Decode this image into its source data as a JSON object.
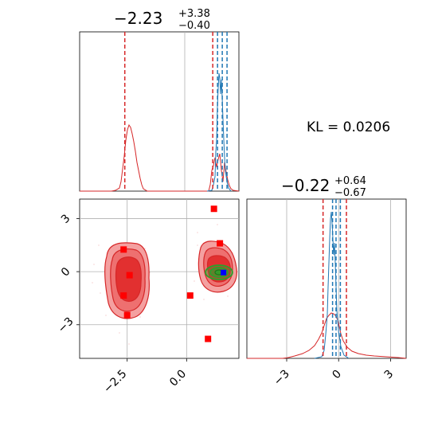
{
  "chart_data": {
    "type": "corner",
    "annotation": {
      "text": "KL = 0.0206"
    },
    "colors": {
      "red": "#d62728",
      "blue": "#1f77b4",
      "green": "#2ca02c",
      "marker_red": "#ff0000",
      "marker_blue": "#0000ff",
      "grid": "#b0b0b0"
    },
    "param1": {
      "title_main": "−2.23",
      "title_plus": "+3.38",
      "title_minus": "−0.40",
      "xlim": [
        -4.5,
        2.2
      ],
      "ticks": [
        -2.5,
        0.0
      ],
      "tick_labels": [
        "−2.5",
        "0.0"
      ],
      "hist_red_lines": [
        -2.6,
        1.1
      ],
      "hist_blue_lines": [
        1.3,
        1.5,
        1.7
      ]
    },
    "param2": {
      "title_main": "−0.22",
      "title_plus": "+0.64",
      "title_minus": "−0.67",
      "xlim": [
        -5.3,
        3.9
      ],
      "ticks": [
        -3,
        0,
        3
      ],
      "tick_labels": [
        "−3",
        "0",
        "3"
      ],
      "hist_red_lines": [
        -0.9,
        0.45
      ],
      "hist_blue_lines": [
        -0.35,
        -0.15,
        0.1
      ]
    },
    "scatter2d": {
      "xlim": [
        -4.5,
        2.2
      ],
      "ylim": [
        -4.9,
        4.1
      ],
      "yticks": [
        3,
        0,
        -3
      ],
      "ytick_labels": [
        "3",
        "0",
        "−3"
      ],
      "red_squares": [
        {
          "x": 1.15,
          "y": 3.55
        },
        {
          "x": 1.4,
          "y": 1.6
        },
        {
          "x": -2.65,
          "y": 1.25
        },
        {
          "x": -2.4,
          "y": -0.2
        },
        {
          "x": -2.65,
          "y": -1.35
        },
        {
          "x": 0.15,
          "y": -1.35
        },
        {
          "x": -2.5,
          "y": -2.45
        },
        {
          "x": 0.9,
          "y": -3.8
        }
      ],
      "blue_point": {
        "x": 1.55,
        "y": -0.05
      }
    }
  }
}
